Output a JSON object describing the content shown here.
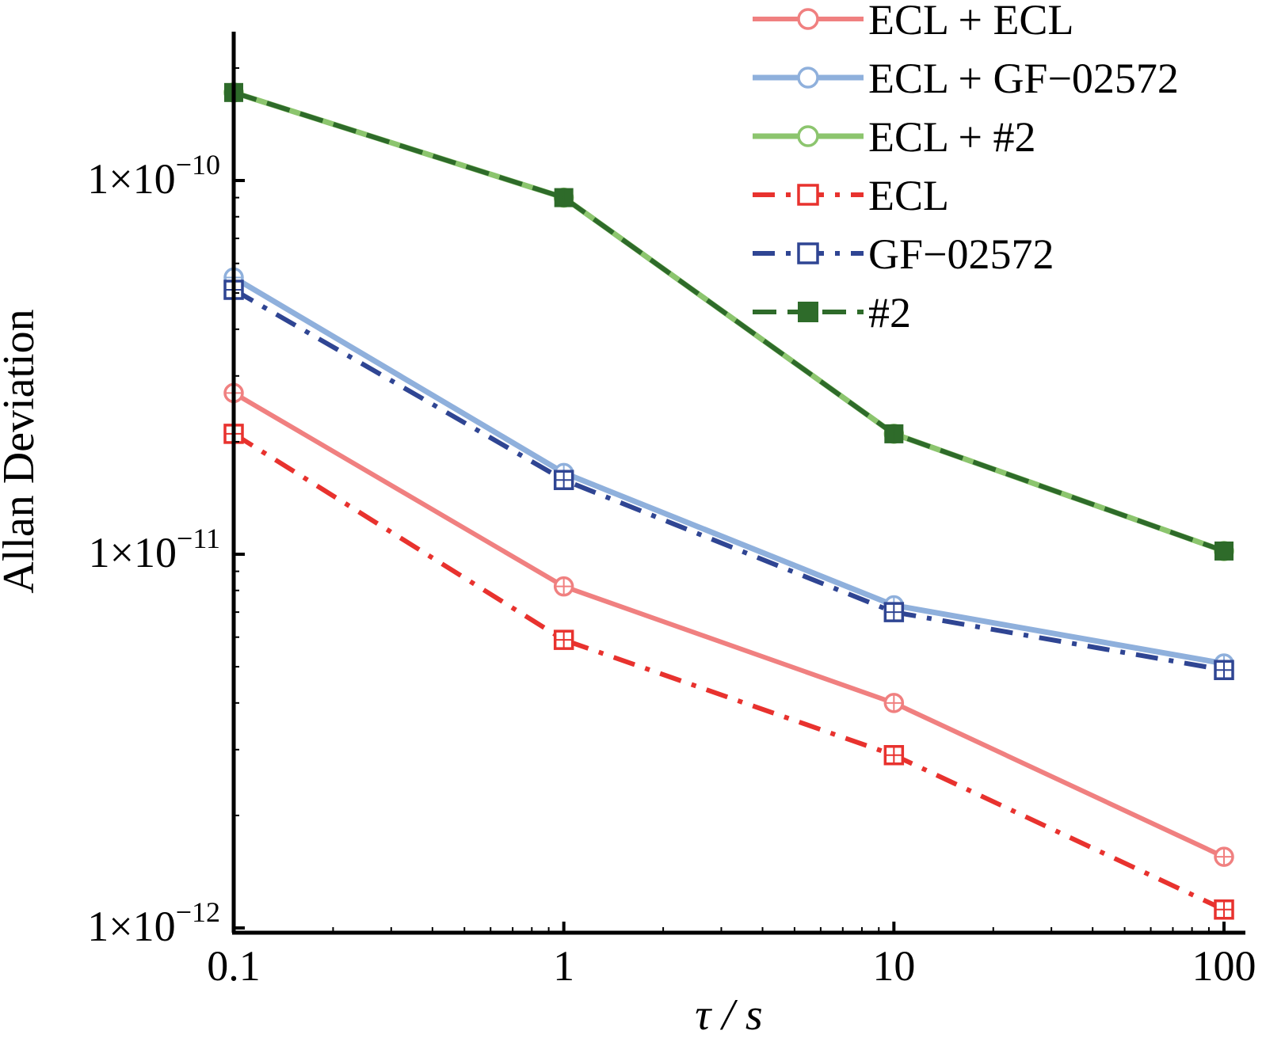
{
  "chart_data": {
    "type": "line",
    "title": "",
    "xlabel": "τ / s",
    "ylabel": "Allan Deviation",
    "xscale": "log",
    "yscale": "log",
    "xlim": [
      0.1,
      100
    ],
    "ylim": [
      9e-13,
      2.4e-10
    ],
    "grid": false,
    "legend_position": "top-right",
    "x": [
      0.1,
      1,
      10,
      100
    ],
    "x_tick_labels": [
      "0.1",
      "1",
      "10",
      "100"
    ],
    "y_ticks": [
      {
        "value": 1e-10,
        "mantissa": "1×10",
        "exponent": "−10"
      },
      {
        "value": 1e-11,
        "mantissa": "1×10",
        "exponent": "−11"
      },
      {
        "value": 1e-12,
        "mantissa": "1×10",
        "exponent": "−12"
      }
    ],
    "series": [
      {
        "name": "ECL + ECL",
        "values": [
          2.7e-11,
          8.2e-12,
          4e-12,
          1.55e-12
        ],
        "color": "#f08080",
        "style": "solid",
        "marker": "circle-open",
        "width": 6
      },
      {
        "name": "ECL + GF−02572",
        "values": [
          5.5e-11,
          1.65e-11,
          7.3e-12,
          5.1e-12
        ],
        "color": "#8fb0dc",
        "style": "solid",
        "marker": "circle-open",
        "width": 7
      },
      {
        "name": "ECL + #2",
        "values": [
          1.72e-10,
          9e-11,
          2.1e-11,
          1.02e-11
        ],
        "color": "#8cc56e",
        "style": "solid",
        "marker": "circle-open",
        "width": 7
      },
      {
        "name": "ECL",
        "values": [
          2.1e-11,
          5.9e-12,
          2.9e-12,
          1.12e-12
        ],
        "color": "#e8322e",
        "style": "dashdot",
        "marker": "square-open",
        "width": 6
      },
      {
        "name": "GF−02572",
        "values": [
          5.1e-11,
          1.58e-11,
          7e-12,
          4.9e-12
        ],
        "color": "#2f4593",
        "style": "dashdot",
        "marker": "square-open",
        "width": 6
      },
      {
        "name": "#2",
        "values": [
          1.72e-10,
          9e-11,
          2.1e-11,
          1.02e-11
        ],
        "color": "#2e6b2a",
        "style": "dashed",
        "marker": "square-filled",
        "width": 6
      }
    ]
  }
}
